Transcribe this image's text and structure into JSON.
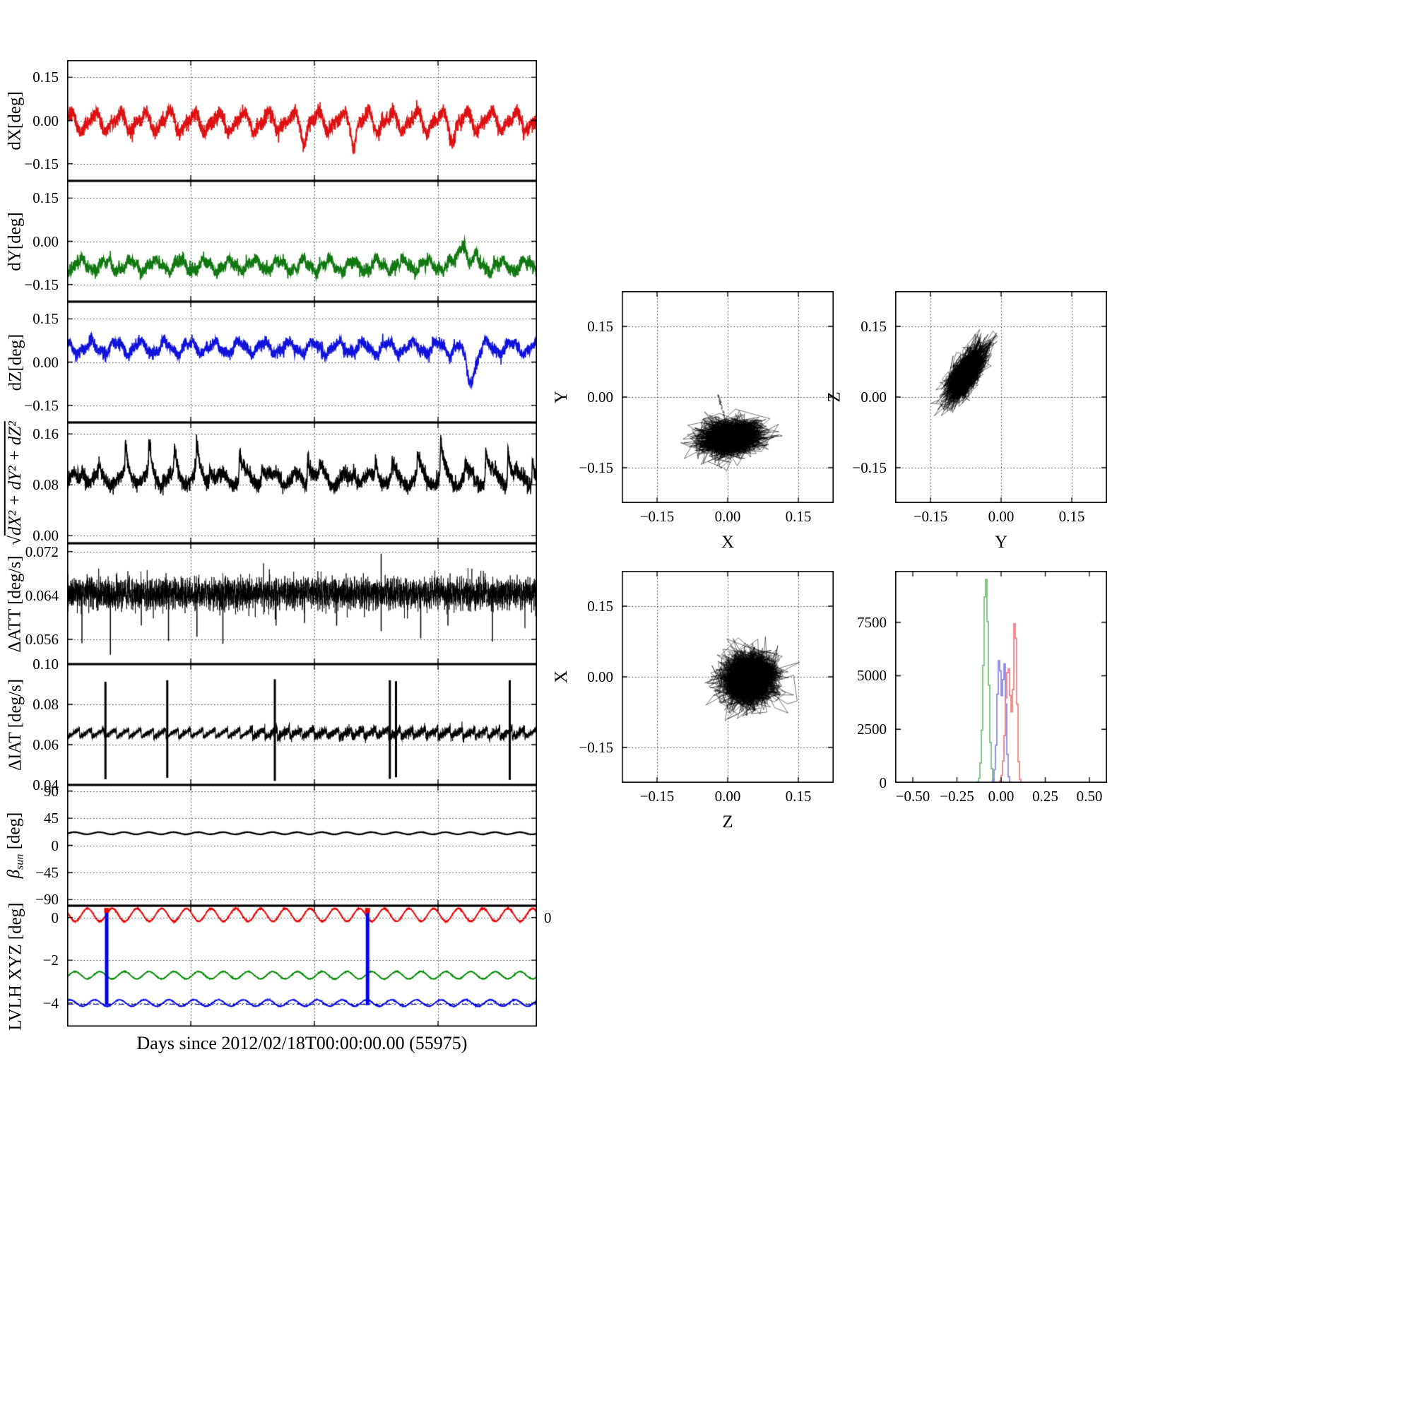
{
  "figure": {
    "xlabel": "Days since 2012/02/18T00:00:00.00 (55975)",
    "background": "#ffffff"
  },
  "chart_data": [
    {
      "id": "dx",
      "type": "line",
      "ylabel": "dX[deg]",
      "xlim": [
        0,
        19
      ],
      "xticks": [
        5,
        10,
        15
      ],
      "ylim": [
        -0.21,
        0.21
      ],
      "yticks": [
        0.15,
        0,
        -0.15
      ],
      "ydec": 2,
      "series": [
        {
          "kind": "osc",
          "color": "#dd1111",
          "lw": 1.7,
          "n": 2600,
          "seed": 101,
          "base": -0.005,
          "noise": 0.013,
          "sins": [
            {
              "a": 0.03,
              "p": 1.0
            },
            {
              "a": 0.012,
              "p": 0.5
            }
          ],
          "bumps": [
            {
              "x": 9.6,
              "h": -0.05,
              "w": 0.08
            },
            {
              "x": 11.6,
              "h": -0.055,
              "w": 0.08
            },
            {
              "x": 15.6,
              "h": -0.045,
              "w": 0.08
            }
          ]
        }
      ]
    },
    {
      "id": "dy",
      "type": "line",
      "ylabel": "dY[deg]",
      "xlim": [
        0,
        19
      ],
      "xticks": [
        5,
        10,
        15
      ],
      "ylim": [
        -0.21,
        0.21
      ],
      "yticks": [
        0.15,
        0,
        -0.15
      ],
      "ydec": 2,
      "series": [
        {
          "kind": "osc",
          "color": "#117711",
          "lw": 1.7,
          "n": 2600,
          "seed": 102,
          "base": -0.085,
          "noise": 0.011,
          "sins": [
            {
              "a": 0.018,
              "p": 1.0
            },
            {
              "a": 0.008,
              "p": 0.37
            }
          ],
          "bumps": [
            {
              "x": 16.0,
              "h": 0.085,
              "w": 0.15
            },
            {
              "x": 16.5,
              "h": 0.02,
              "w": 0.1
            }
          ]
        }
      ]
    },
    {
      "id": "dz",
      "type": "line",
      "ylabel": "dZ[deg]",
      "xlim": [
        0,
        19
      ],
      "xticks": [
        5,
        10,
        15
      ],
      "ylim": [
        -0.21,
        0.21
      ],
      "yticks": [
        0.15,
        0,
        -0.15
      ],
      "ydec": 2,
      "series": [
        {
          "kind": "osc",
          "color": "#1111dd",
          "lw": 1.7,
          "n": 2600,
          "seed": 103,
          "base": 0.05,
          "noise": 0.01,
          "sins": [
            {
              "a": 0.02,
              "p": 1.0
            },
            {
              "a": 0.008,
              "p": 0.42
            }
          ],
          "bumps": [
            {
              "x": 16.3,
              "h": -0.11,
              "w": 0.18
            }
          ]
        }
      ]
    },
    {
      "id": "rss",
      "type": "line",
      "ylabel_sqrt": "√",
      "ylabel_body": "dX² + dY² + dZ²",
      "xlim": [
        0,
        19
      ],
      "xticks": [
        5,
        10,
        15
      ],
      "ylim": [
        -0.012,
        0.178
      ],
      "yticks": [
        0.16,
        0.08,
        0
      ],
      "ydec": 2,
      "series": [
        {
          "kind": "osc",
          "color": "#000000",
          "lw": 1.5,
          "n": 3000,
          "seed": 104,
          "base": 0.088,
          "noise": 0.006,
          "sins": [
            {
              "a": 0.01,
              "p": 1.0
            }
          ],
          "peaks": {
            "count": 21,
            "hmin": 0.015,
            "hmax": 0.06,
            "decay": 0.13
          }
        }
      ]
    },
    {
      "id": "att",
      "type": "line",
      "ylabel": "ΔATT [deg/s]",
      "xlim": [
        0,
        19
      ],
      "xticks": [
        5,
        10,
        15
      ],
      "ylim": [
        0.0515,
        0.0735
      ],
      "yticks": [
        0.072,
        0.064,
        0.056
      ],
      "ydec": 3,
      "series": [
        {
          "kind": "osc",
          "color": "#000000",
          "lw": 0.8,
          "n": 5200,
          "seed": 105,
          "base": 0.0644,
          "noise": 0.0013,
          "sins": [
            {
              "a": 0.0007,
              "p": 0.09
            }
          ]
        }
      ],
      "vlines": [
        {
          "x": 0.6,
          "y0": 0.0553,
          "y1": 0.0646
        },
        {
          "x": 1.75,
          "y0": 0.0532,
          "y1": 0.0646
        },
        {
          "x": 3.0,
          "y0": 0.0585,
          "y1": 0.0646
        },
        {
          "x": 4.1,
          "y0": 0.0557,
          "y1": 0.0646
        },
        {
          "x": 5.25,
          "y0": 0.0565,
          "y1": 0.0646
        },
        {
          "x": 6.3,
          "y0": 0.0552,
          "y1": 0.0646
        },
        {
          "x": 8.45,
          "y0": 0.0585,
          "y1": 0.0646
        },
        {
          "x": 9.6,
          "y0": 0.059,
          "y1": 0.0646
        },
        {
          "x": 10.9,
          "y0": 0.0585,
          "y1": 0.0648
        },
        {
          "x": 12.7,
          "y0": 0.0575,
          "y1": 0.0716
        },
        {
          "x": 14.3,
          "y0": 0.0562,
          "y1": 0.0648
        },
        {
          "x": 15.4,
          "y0": 0.0585,
          "y1": 0.0648
        },
        {
          "x": 17.2,
          "y0": 0.0556,
          "y1": 0.0648
        }
      ]
    },
    {
      "id": "iat",
      "type": "line",
      "ylabel": "ΔIAT [deg/s]",
      "xlim": [
        0,
        19
      ],
      "xticks": [
        5,
        10,
        15
      ],
      "ylim": [
        0.04,
        0.1
      ],
      "yticks": [
        0.1,
        0.08,
        0.06,
        0.04
      ],
      "ydec": 2,
      "series": [
        {
          "kind": "saw",
          "color": "#000000",
          "lw": 1.1,
          "n": 4200,
          "seed": 106,
          "base": 0.0636,
          "ramp": 0.0042,
          "period": 0.5,
          "noise": 0.0006,
          "jitter": {
            "x0": 7.4,
            "x1": 18.6,
            "extra": 0.001
          }
        }
      ],
      "vlines": [
        {
          "x": 1.55,
          "y0": 0.0428,
          "y1": 0.0912,
          "lw": 3
        },
        {
          "x": 4.05,
          "y0": 0.0435,
          "y1": 0.092,
          "lw": 3
        },
        {
          "x": 8.4,
          "y0": 0.042,
          "y1": 0.0925,
          "lw": 3
        },
        {
          "x": 13.05,
          "y0": 0.043,
          "y1": 0.092,
          "lw": 3
        },
        {
          "x": 13.3,
          "y0": 0.0438,
          "y1": 0.0915,
          "lw": 3
        },
        {
          "x": 17.9,
          "y0": 0.0425,
          "y1": 0.092,
          "lw": 3
        }
      ]
    },
    {
      "id": "beta",
      "type": "line",
      "ylabel_main": "β",
      "ylabel_sub": "sun",
      "ylabel_unit": " [deg]",
      "xlim": [
        0,
        19
      ],
      "xticks": [
        5,
        10,
        15
      ],
      "ylim": [
        -100,
        100
      ],
      "yticks": [
        90,
        45,
        0,
        -45,
        -90
      ],
      "ydec": 0,
      "series": [
        {
          "kind": "osc",
          "color": "#000000",
          "lw": 2.2,
          "n": 1600,
          "seed": 107,
          "base": 20,
          "noise": 0.12,
          "sins": [
            {
              "a": 1.8,
              "p": 1.0
            }
          ]
        }
      ]
    },
    {
      "id": "lvlh",
      "type": "line",
      "ylabel": "LVLH XYZ [deg]",
      "right_tick_label": "0",
      "xlim": [
        0,
        19
      ],
      "xticks": [
        5,
        10,
        15
      ],
      "ylim": [
        -5.1,
        0.55
      ],
      "yticks": [
        0,
        -2,
        -4
      ],
      "ydec": 0,
      "series": [
        {
          "kind": "osc",
          "color": "#ee0000",
          "lw": 1.8,
          "n": 2400,
          "seed": 108,
          "base": 0.12,
          "noise": 0.01,
          "sins": [
            {
              "a": 0.3,
              "p": 1.0
            }
          ]
        },
        {
          "kind": "osc",
          "color": "#008800",
          "lw": 1.6,
          "n": 2400,
          "seed": 109,
          "base": -2.7,
          "noise": 0.008,
          "sins": [
            {
              "a": 0.17,
              "p": 1.0
            }
          ]
        },
        {
          "kind": "osc",
          "color": "#0000ee",
          "lw": 1.6,
          "n": 2400,
          "seed": 110,
          "base": -4.0,
          "noise": 0.008,
          "sins": [
            {
              "a": 0.15,
              "p": 1.0
            }
          ]
        }
      ],
      "hlines": [
        {
          "y": -4.06,
          "color": "#0000cc",
          "lw": 1.2
        }
      ],
      "vlines": [
        {
          "x": 1.6,
          "y0": -4.1,
          "y1": 0.33,
          "color": "#0000ee",
          "lw": 5
        },
        {
          "x": 12.15,
          "y0": -4.1,
          "y1": 0.33,
          "color": "#0000ee",
          "lw": 5
        }
      ],
      "markers": [
        {
          "x": 1.6,
          "y": 0.33,
          "color": "#ee0000"
        },
        {
          "x": 12.15,
          "y": 0.33,
          "color": "#ee0000"
        }
      ]
    },
    {
      "id": "xy",
      "type": "scatter",
      "xlabel": "X",
      "ylabel": "Y",
      "xlim": [
        -0.225,
        0.225
      ],
      "ylim": [
        -0.225,
        0.225
      ],
      "xticks": [
        -0.15,
        0,
        0.15
      ],
      "yticks": [
        -0.15,
        0,
        0.15
      ],
      "xdec": 2,
      "ydec": 2,
      "cluster": {
        "cx": 0.005,
        "cy": -0.085,
        "sx": 0.032,
        "sy": 0.018,
        "rho": 0.15,
        "phi": 0.55,
        "n": 2600,
        "seed": 21
      },
      "tail": {
        "x": -0.02,
        "y": 0.004,
        "n": 130
      }
    },
    {
      "id": "yz",
      "type": "scatter",
      "xlabel": "Y",
      "ylabel": "Z",
      "xlim": [
        -0.225,
        0.225
      ],
      "ylim": [
        -0.225,
        0.225
      ],
      "xticks": [
        -0.15,
        0,
        0.15
      ],
      "yticks": [
        -0.15,
        0,
        0.15
      ],
      "xdec": 2,
      "ydec": 2,
      "cluster": {
        "cx": -0.075,
        "cy": 0.05,
        "sx": 0.02,
        "sy": 0.028,
        "rho": 0.7,
        "phi": 0.6,
        "n": 2600,
        "seed": 22
      }
    },
    {
      "id": "zx",
      "type": "scatter",
      "xlabel": "Z",
      "ylabel": "X",
      "xlim": [
        -0.225,
        0.225
      ],
      "ylim": [
        -0.225,
        0.225
      ],
      "xticks": [
        -0.15,
        0,
        0.15
      ],
      "yticks": [
        -0.15,
        0,
        0.15
      ],
      "xdec": 2,
      "ydec": 2,
      "cluster": {
        "cx": 0.045,
        "cy": -0.005,
        "sx": 0.027,
        "sy": 0.026,
        "rho": 0.05,
        "phi": 0.5,
        "n": 3200,
        "seed": 23
      }
    },
    {
      "id": "hist",
      "type": "hist",
      "grid": false,
      "xlim": [
        -0.6,
        0.6
      ],
      "ylim": [
        0,
        9900
      ],
      "xticks": [
        -0.5,
        -0.25,
        0,
        0.25,
        0.5
      ],
      "yticks": [
        7500,
        5000,
        2500,
        0
      ],
      "xdec": 2,
      "ydec": 0,
      "bins": 150,
      "series": [
        {
          "color": "#77c277",
          "comps": [
            {
              "c": -0.085,
              "s": 0.014,
              "peak": 9500
            }
          ]
        },
        {
          "color": "#8888e8",
          "comps": [
            {
              "c": -0.01,
              "s": 0.012,
              "peak": 5700
            },
            {
              "c": 0.02,
              "s": 0.01,
              "peak": 5200
            }
          ]
        },
        {
          "color": "#f08080",
          "comps": [
            {
              "c": 0.04,
              "s": 0.015,
              "peak": 5500
            },
            {
              "c": 0.08,
              "s": 0.01,
              "peak": 7300
            }
          ]
        }
      ]
    }
  ]
}
